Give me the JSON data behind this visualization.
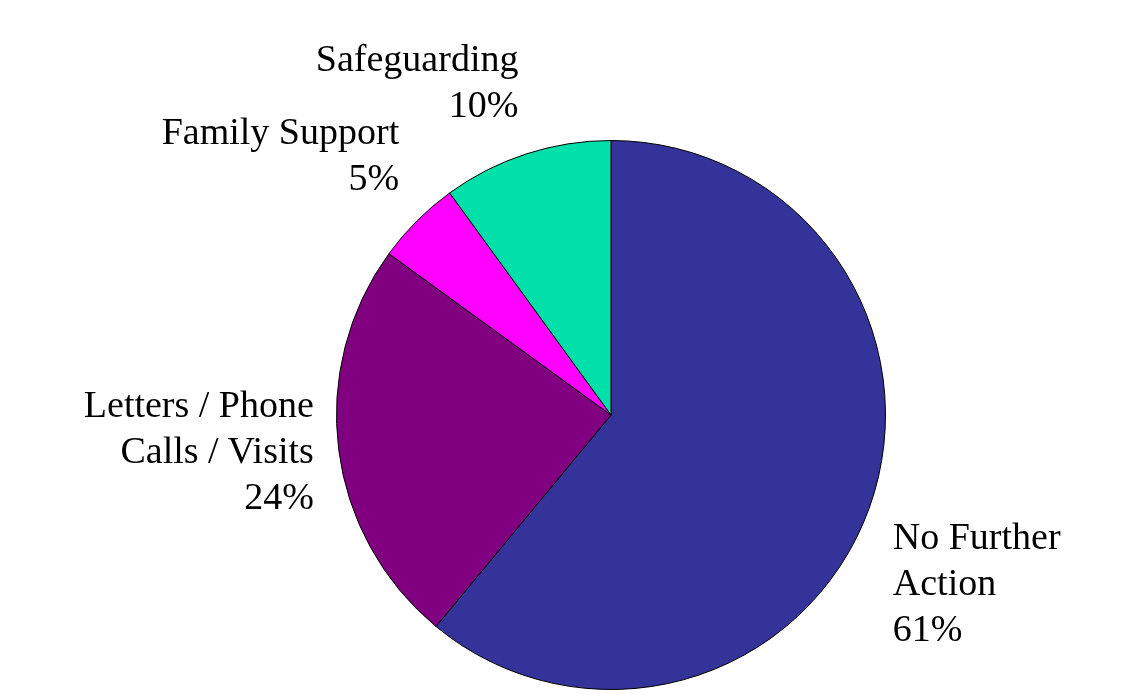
{
  "chart_data": {
    "type": "pie",
    "categories": [
      "No Further Action",
      "Letters / Phone Calls / Visits",
      "Family Support",
      "Safeguarding"
    ],
    "values": [
      61,
      24,
      5,
      10
    ],
    "colors": [
      "#333399",
      "#800080",
      "#ff00ff",
      "#00e0a8"
    ],
    "value_labels": [
      "61%",
      "24%",
      "5%",
      "10%"
    ],
    "legend": false
  }
}
